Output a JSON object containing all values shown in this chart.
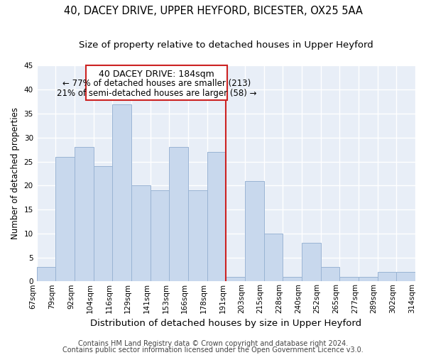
{
  "title": "40, DACEY DRIVE, UPPER HEYFORD, BICESTER, OX25 5AA",
  "subtitle": "Size of property relative to detached houses in Upper Heyford",
  "xlabel": "Distribution of detached houses by size in Upper Heyford",
  "ylabel": "Number of detached properties",
  "bar_labels": [
    "67sqm",
    "79sqm",
    "92sqm",
    "104sqm",
    "116sqm",
    "129sqm",
    "141sqm",
    "153sqm",
    "166sqm",
    "178sqm",
    "191sqm",
    "203sqm",
    "215sqm",
    "228sqm",
    "240sqm",
    "252sqm",
    "265sqm",
    "277sqm",
    "289sqm",
    "302sqm",
    "314sqm"
  ],
  "bar_values": [
    3,
    26,
    28,
    24,
    37,
    20,
    19,
    28,
    19,
    27,
    1,
    21,
    10,
    1,
    8,
    3,
    1,
    1,
    2,
    2
  ],
  "bar_color": "#c8d8ed",
  "bar_edge_color": "#9ab4d4",
  "annotation_title": "40 DACEY DRIVE: 184sqm",
  "annotation_line1": "← 77% of detached houses are smaller (213)",
  "annotation_line2": "21% of semi-detached houses are larger (58) →",
  "annotation_box_facecolor": "#ffffff",
  "annotation_box_edgecolor": "#cc2222",
  "highlight_line_color": "#cc2222",
  "ylim": [
    0,
    45
  ],
  "yticks": [
    0,
    5,
    10,
    15,
    20,
    25,
    30,
    35,
    40,
    45
  ],
  "bg_color": "#e8eef7",
  "grid_color": "#ffffff",
  "footer1": "Contains HM Land Registry data © Crown copyright and database right 2024.",
  "footer2": "Contains public sector information licensed under the Open Government Licence v3.0.",
  "title_fontsize": 10.5,
  "subtitle_fontsize": 9.5,
  "xlabel_fontsize": 9.5,
  "ylabel_fontsize": 8.5,
  "tick_fontsize": 7.5,
  "annot_title_fontsize": 9,
  "annot_text_fontsize": 8.5,
  "footer_fontsize": 7
}
